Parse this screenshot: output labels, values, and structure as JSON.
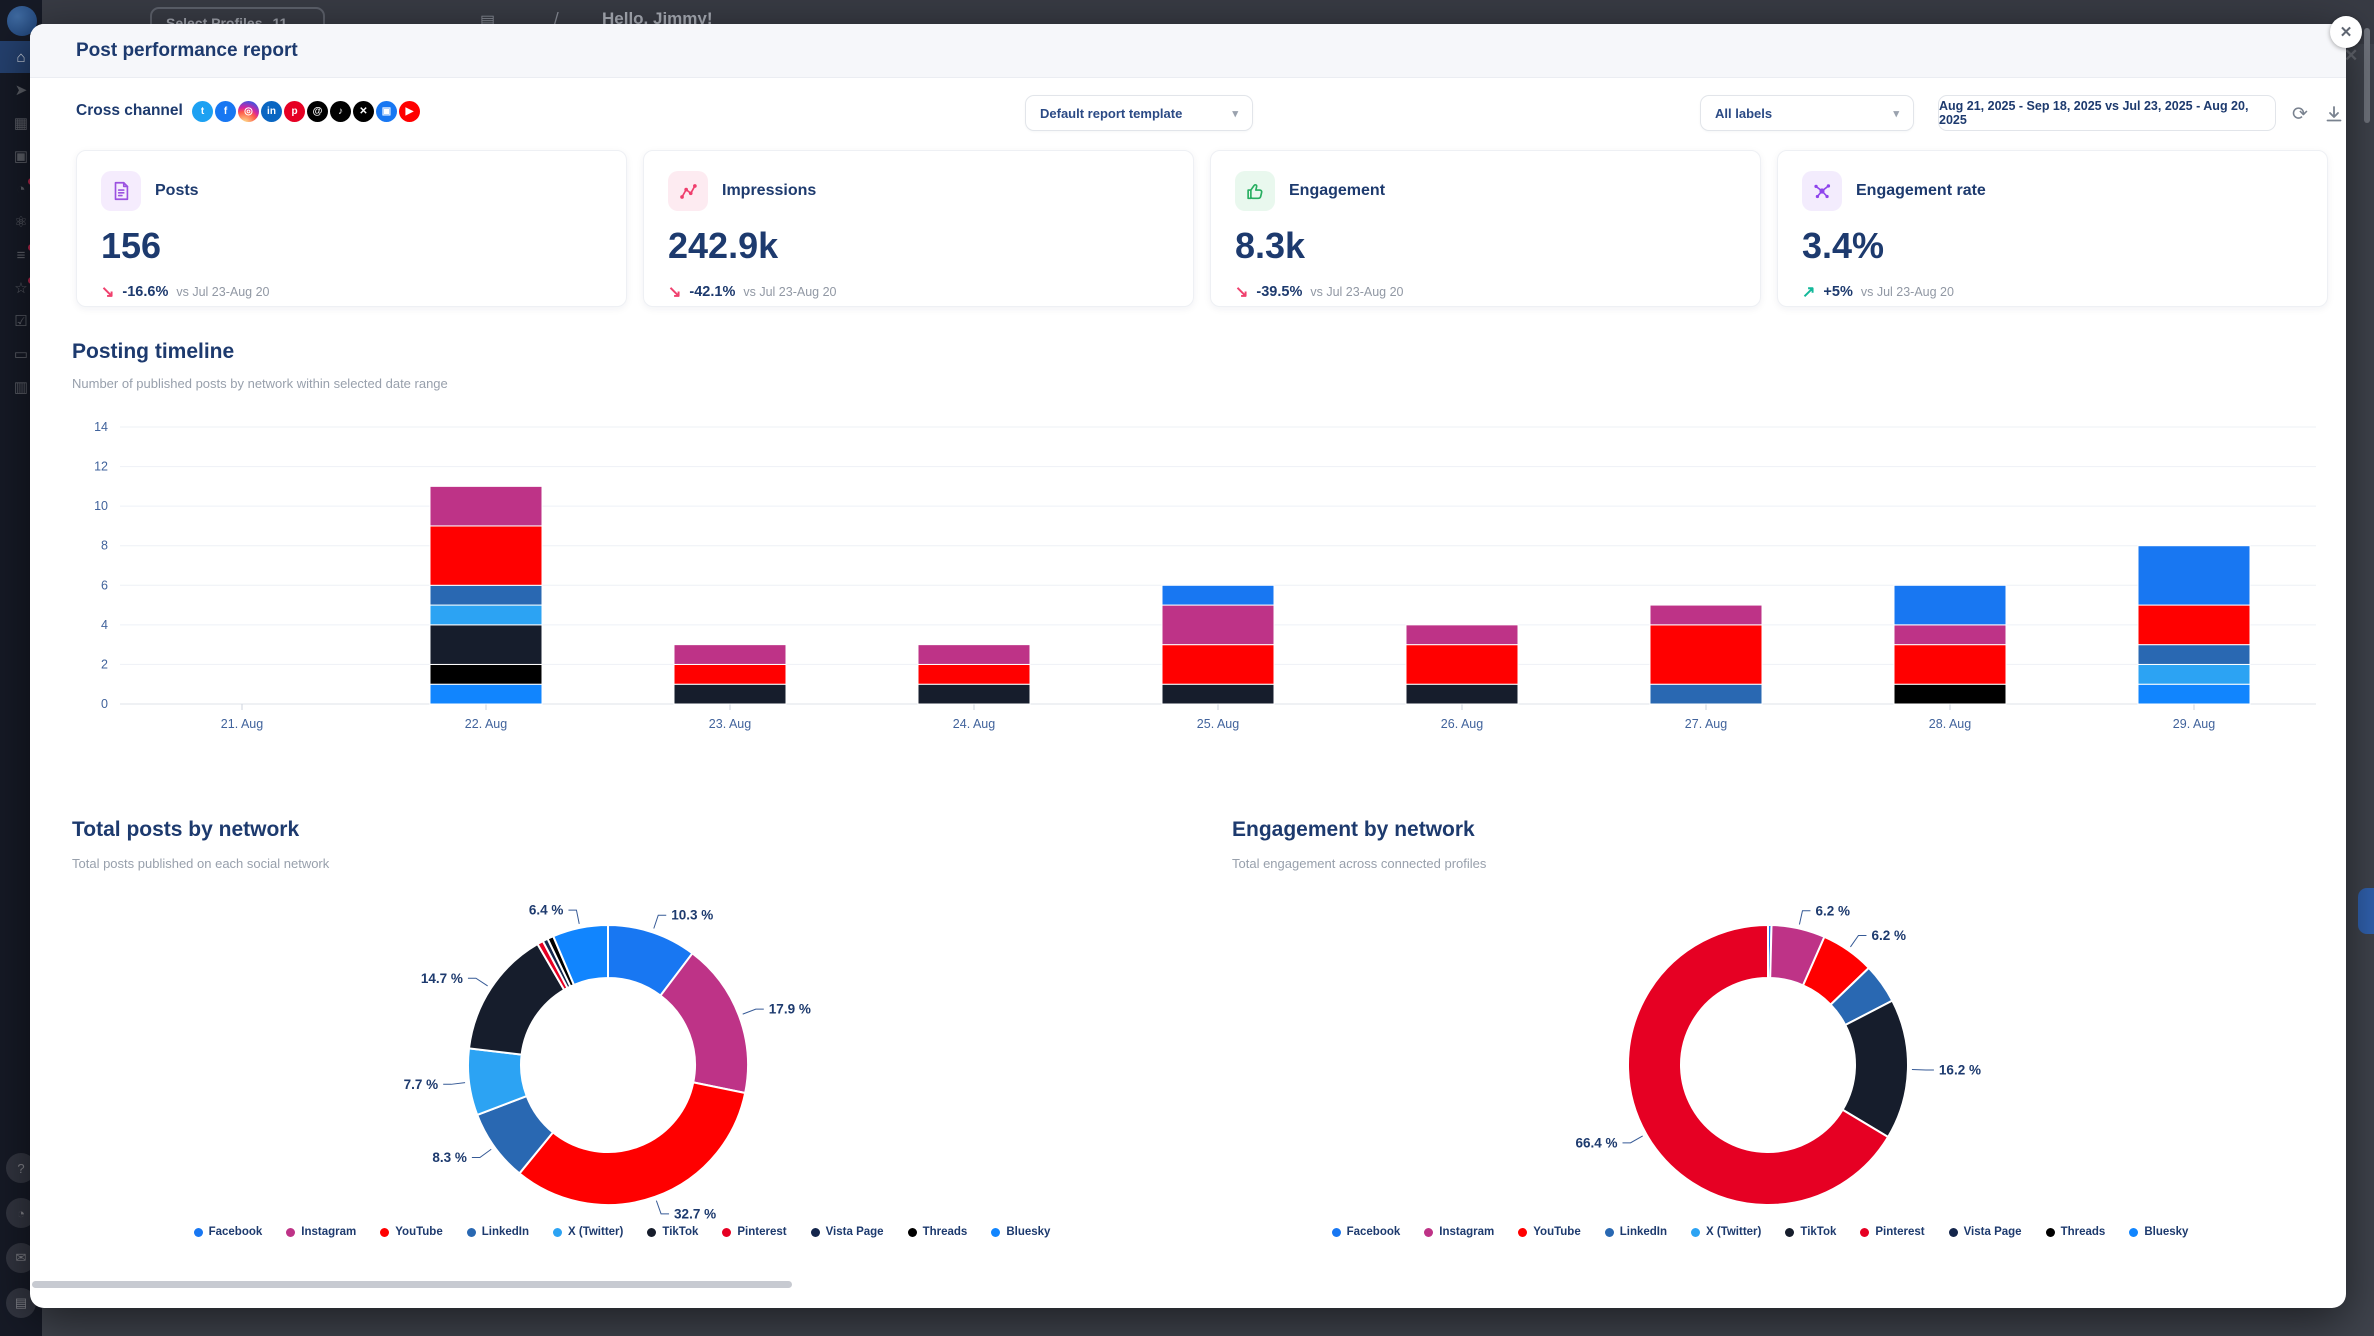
{
  "app": {
    "topbar": {
      "select_profiles": "Select Profiles",
      "profiles_count": "11",
      "greeting": "Hello, Jimmy!"
    },
    "sidebar_icons": [
      {
        "name": "home",
        "glyph": "⌂",
        "active": true
      },
      {
        "name": "publish",
        "glyph": "➤",
        "active": false
      },
      {
        "name": "calendar",
        "glyph": "▦",
        "active": false
      },
      {
        "name": "media",
        "glyph": "▣",
        "active": false
      },
      {
        "name": "inbox",
        "glyph": "◔",
        "active": false,
        "badge": true
      },
      {
        "name": "listening",
        "glyph": "⚛",
        "active": false
      },
      {
        "name": "analytics",
        "glyph": "≡",
        "active": false,
        "badge": true
      },
      {
        "name": "reviews",
        "glyph": "☆",
        "active": false,
        "badge": true
      },
      {
        "name": "tasks",
        "glyph": "☑",
        "active": false
      },
      {
        "name": "billing",
        "glyph": "▭",
        "active": false
      },
      {
        "name": "apps",
        "glyph": "▥",
        "active": false
      }
    ],
    "sidebar_bottom_icons": [
      {
        "name": "help",
        "glyph": "?"
      },
      {
        "name": "notifications",
        "glyph": "◔"
      },
      {
        "name": "messages",
        "glyph": "✉"
      },
      {
        "name": "account",
        "glyph": "▤"
      }
    ]
  },
  "modal": {
    "title": "Post performance report",
    "toolbar": {
      "channel_label": "Cross channel",
      "template_value": "Default report template",
      "labels_value": "All labels",
      "date_range": "Aug 21, 2025 - Sep 18, 2025 vs Jul 23, 2025 - Aug 20, 2025",
      "networks": [
        {
          "name": "twitter",
          "glyph": "t",
          "bg": "#1DA1F2"
        },
        {
          "name": "facebook",
          "glyph": "f",
          "bg": "#1877F2"
        },
        {
          "name": "instagram",
          "glyph": "◎",
          "bg": "gradient"
        },
        {
          "name": "linkedin",
          "glyph": "in",
          "bg": "#0A66C2"
        },
        {
          "name": "pinterest",
          "glyph": "p",
          "bg": "#E60023"
        },
        {
          "name": "threads",
          "glyph": "@",
          "bg": "#000000"
        },
        {
          "name": "tiktok",
          "glyph": "♪",
          "bg": "#010101"
        },
        {
          "name": "x",
          "glyph": "✕",
          "bg": "#000000"
        },
        {
          "name": "vista-page",
          "glyph": "▣",
          "bg": "#1877F2"
        },
        {
          "name": "youtube",
          "glyph": "▶",
          "bg": "#FF0000"
        }
      ]
    },
    "kpis": [
      {
        "label": "Posts",
        "value": "156",
        "delta": "-16.6%",
        "delta_direction": "down",
        "compare": "vs Jul 23-Aug 20",
        "icon": "posts-document-icon",
        "icon_color": "#9B51E0",
        "icon_bg": "#F5ECFD"
      },
      {
        "label": "Impressions",
        "value": "242.9k",
        "delta": "-42.1%",
        "delta_direction": "down",
        "compare": "vs Jul 23-Aug 20",
        "icon": "impressions-nodes-icon",
        "icon_color": "#EF3E6D",
        "icon_bg": "#FDEBF1"
      },
      {
        "label": "Engagement",
        "value": "8.3k",
        "delta": "-39.5%",
        "delta_direction": "down",
        "compare": "vs Jul 23-Aug 20",
        "icon": "engagement-thumbsup-icon",
        "icon_color": "#27AE60",
        "icon_bg": "#E9F8EE"
      },
      {
        "label": "Engagement rate",
        "value": "3.4%",
        "delta": "+5%",
        "delta_direction": "up",
        "compare": "vs Jul 23-Aug 20",
        "icon": "engagement-rate-molecule-icon",
        "icon_color": "#8E44EC",
        "icon_bg": "#F3ECFD"
      }
    ],
    "sections": {
      "timeline": {
        "title": "Posting timeline",
        "subtitle": "Number of published posts by network within selected date range"
      },
      "posts_by_network": {
        "title": "Total posts by network",
        "subtitle": "Total posts published on each social network"
      },
      "engagement_by_network": {
        "title": "Engagement by network",
        "subtitle": "Total engagement across connected profiles"
      }
    },
    "legend": [
      "Facebook",
      "Instagram",
      "YouTube",
      "LinkedIn",
      "X (Twitter)",
      "TikTok",
      "Pinterest",
      "Vista Page",
      "Threads",
      "Bluesky"
    ]
  },
  "icons": {
    "caret_down": "▾",
    "chevron_down": "⌄",
    "refresh": "⟳",
    "arrow_down_delta": "↘",
    "arrow_up_delta": "↗",
    "close": "✕",
    "slash": "/",
    "list": "▤"
  },
  "status_colors": {
    "delta_down": "#F0416E",
    "delta_up": "#14B89A"
  },
  "network_colors": {
    "Facebook": "#1877F2",
    "Instagram": "#BE3387",
    "YouTube": "#FF0000",
    "LinkedIn": "#2968B2",
    "X (Twitter)": "#2CA3F3",
    "TikTok": "#161D2C",
    "Pinterest": "#E60023",
    "Vista Page": "#14264C",
    "Threads": "#000000",
    "Bluesky": "#1185FE"
  },
  "chart_data": [
    {
      "type": "bar",
      "stacked": true,
      "title": "Posting timeline",
      "categories": [
        "21. Aug",
        "22. Aug",
        "23. Aug",
        "24. Aug",
        "25. Aug",
        "26. Aug",
        "27. Aug",
        "28. Aug",
        "29. Aug"
      ],
      "series": [
        {
          "name": "Facebook",
          "values": [
            0,
            0,
            0,
            0,
            1,
            0,
            0,
            2,
            3
          ]
        },
        {
          "name": "Instagram",
          "values": [
            0,
            2,
            1,
            1,
            2,
            1,
            1,
            1,
            0
          ]
        },
        {
          "name": "YouTube",
          "values": [
            0,
            3,
            1,
            1,
            2,
            2,
            3,
            2,
            2
          ]
        },
        {
          "name": "LinkedIn",
          "values": [
            0,
            1,
            0,
            0,
            0,
            0,
            1,
            0,
            1
          ]
        },
        {
          "name": "X (Twitter)",
          "values": [
            0,
            1,
            0,
            0,
            0,
            0,
            0,
            0,
            1
          ]
        },
        {
          "name": "TikTok",
          "values": [
            0,
            2,
            1,
            1,
            1,
            1,
            0,
            0,
            0
          ]
        },
        {
          "name": "Pinterest",
          "values": [
            0,
            0,
            0,
            0,
            0,
            0,
            0,
            0,
            0
          ]
        },
        {
          "name": "Vista Page",
          "values": [
            0,
            0,
            0,
            0,
            0,
            0,
            0,
            0,
            0
          ]
        },
        {
          "name": "Threads",
          "values": [
            0,
            1,
            0,
            0,
            0,
            0,
            0,
            1,
            0
          ]
        },
        {
          "name": "Bluesky",
          "values": [
            0,
            1,
            0,
            0,
            0,
            0,
            0,
            0,
            1
          ]
        }
      ],
      "stack_order_bottom_to_top": [
        "Bluesky",
        "Threads",
        "Vista Page",
        "Pinterest",
        "TikTok",
        "X (Twitter)",
        "LinkedIn",
        "YouTube",
        "Instagram",
        "Facebook"
      ],
      "xlabel": "",
      "ylabel": "",
      "ylim": [
        0,
        14
      ],
      "yticks": [
        0,
        2,
        4,
        6,
        8,
        10,
        12,
        14
      ],
      "grid": true,
      "bar_totals": [
        0,
        11,
        3,
        3,
        6,
        4,
        5,
        6,
        8
      ]
    },
    {
      "type": "pie",
      "subtype": "donut",
      "title": "Total posts by network",
      "slices": [
        {
          "label": "Facebook",
          "value": 10.3
        },
        {
          "label": "Instagram",
          "value": 17.9
        },
        {
          "label": "YouTube",
          "value": 32.7
        },
        {
          "label": "LinkedIn",
          "value": 8.3
        },
        {
          "label": "X (Twitter)",
          "value": 7.7
        },
        {
          "label": "TikTok",
          "value": 14.7
        },
        {
          "label": "Pinterest",
          "value": 0.7
        },
        {
          "label": "Vista Page",
          "value": 0.6
        },
        {
          "label": "Threads",
          "value": 0.7
        },
        {
          "label": "Bluesky",
          "value": 6.4
        }
      ],
      "label_format": "{value} %",
      "label_min_value": 5,
      "legend_position": "bottom"
    },
    {
      "type": "pie",
      "subtype": "donut",
      "title": "Engagement by network",
      "slices": [
        {
          "label": "Facebook",
          "value": 0.4
        },
        {
          "label": "Instagram",
          "value": 6.2
        },
        {
          "label": "YouTube",
          "value": 6.2
        },
        {
          "label": "LinkedIn",
          "value": 4.6
        },
        {
          "label": "X (Twitter)",
          "value": 0
        },
        {
          "label": "TikTok",
          "value": 16.2
        },
        {
          "label": "Pinterest",
          "value": 66.4
        },
        {
          "label": "Vista Page",
          "value": 0
        },
        {
          "label": "Threads",
          "value": 0
        },
        {
          "label": "Bluesky",
          "value": 0
        }
      ],
      "label_format": "{value} %",
      "label_min_value": 5,
      "legend_position": "bottom"
    }
  ]
}
